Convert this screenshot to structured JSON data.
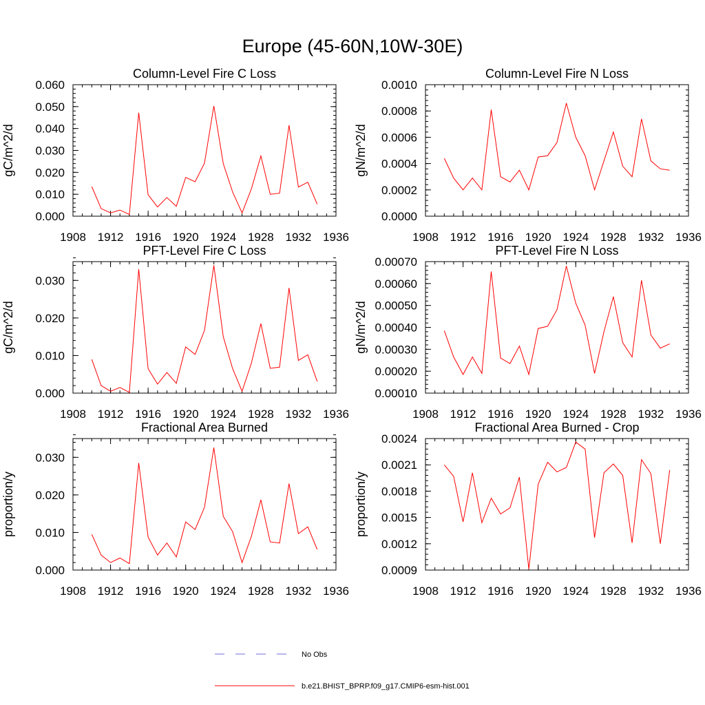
{
  "figure": {
    "title": "Europe (45-60N,10W-30E)"
  },
  "chart_data": [
    {
      "type": "line",
      "title": "Column-Level Fire C Loss",
      "ylabel": "gC/m^2/d",
      "xlim": [
        1908,
        1936
      ],
      "ylim": [
        0,
        0.06
      ],
      "xticks": [
        1908,
        1912,
        1916,
        1920,
        1924,
        1928,
        1932,
        1936
      ],
      "xtick_labels": [
        "1908",
        "1912",
        "1916",
        "1920",
        "1924",
        "1928",
        "1932",
        "1936"
      ],
      "yticks": [
        0,
        0.01,
        0.02,
        0.03,
        0.04,
        0.05,
        0.06
      ],
      "ytick_labels": [
        "0.000",
        "0.010",
        "0.020",
        "0.030",
        "0.040",
        "0.050",
        "0.060"
      ],
      "x": [
        1910,
        1911,
        1912,
        1913,
        1914,
        1915,
        1916,
        1917,
        1918,
        1919,
        1920,
        1921,
        1922,
        1923,
        1924,
        1925,
        1926,
        1927,
        1928,
        1929,
        1930,
        1931,
        1932,
        1933,
        1934
      ],
      "values": [
        0.0135,
        0.0035,
        0.0015,
        0.0028,
        0.0008,
        0.0472,
        0.0098,
        0.0042,
        0.0085,
        0.0045,
        0.0177,
        0.0157,
        0.0242,
        0.0503,
        0.024,
        0.011,
        0.0015,
        0.0125,
        0.0275,
        0.01,
        0.0105,
        0.0415,
        0.0133,
        0.0155,
        0.0055
      ],
      "color": "#ff0000"
    },
    {
      "type": "line",
      "title": "Column-Level Fire N Loss",
      "ylabel": "gN/m^2/d",
      "xlim": [
        1908,
        1936
      ],
      "ylim": [
        0,
        0.001
      ],
      "xticks": [
        1908,
        1912,
        1916,
        1920,
        1924,
        1928,
        1932,
        1936
      ],
      "xtick_labels": [
        "1908",
        "1912",
        "1916",
        "1920",
        "1924",
        "1928",
        "1932",
        "1936"
      ],
      "yticks": [
        0,
        0.0002,
        0.0004,
        0.0006,
        0.0008,
        0.001
      ],
      "ytick_labels": [
        "0.0000",
        "0.0002",
        "0.0004",
        "0.0006",
        "0.0008",
        "0.0010"
      ],
      "x": [
        1910,
        1911,
        1912,
        1913,
        1914,
        1915,
        1916,
        1917,
        1918,
        1919,
        1920,
        1921,
        1922,
        1923,
        1924,
        1925,
        1926,
        1927,
        1928,
        1929,
        1930,
        1931,
        1932,
        1933,
        1934
      ],
      "values": [
        0.00044,
        0.00029,
        0.0002,
        0.00029,
        0.0002,
        0.00081,
        0.0003,
        0.00026,
        0.00035,
        0.0002,
        0.00045,
        0.00046,
        0.00056,
        0.00086,
        0.0006,
        0.00046,
        0.0002,
        0.00042,
        0.00064,
        0.00038,
        0.0003,
        0.00074,
        0.00042,
        0.00036,
        0.00035
      ],
      "color": "#ff0000"
    },
    {
      "type": "line",
      "title": "PFT-Level Fire C Loss",
      "ylabel": "gC/m^2/d",
      "xlim": [
        1908,
        1936
      ],
      "ylim": [
        0,
        0.035
      ],
      "xticks": [
        1908,
        1912,
        1916,
        1920,
        1924,
        1928,
        1932,
        1936
      ],
      "xtick_labels": [
        "1908",
        "1912",
        "1916",
        "1920",
        "1924",
        "1928",
        "1932",
        "1936"
      ],
      "yticks": [
        0,
        0.01,
        0.02,
        0.03
      ],
      "ytick_labels": [
        "0.000",
        "0.010",
        "0.020",
        "0.030"
      ],
      "x": [
        1910,
        1911,
        1912,
        1913,
        1914,
        1915,
        1916,
        1917,
        1918,
        1919,
        1920,
        1921,
        1922,
        1923,
        1924,
        1925,
        1926,
        1927,
        1928,
        1929,
        1930,
        1931,
        1932,
        1933,
        1934
      ],
      "values": [
        0.009,
        0.002,
        0.0005,
        0.0015,
        0.0002,
        0.033,
        0.0065,
        0.0024,
        0.0055,
        0.0026,
        0.0123,
        0.0103,
        0.0167,
        0.034,
        0.015,
        0.0065,
        0.0005,
        0.008,
        0.0185,
        0.0066,
        0.0069,
        0.028,
        0.0087,
        0.0102,
        0.0031
      ],
      "color": "#ff0000"
    },
    {
      "type": "line",
      "title": "PFT-Level Fire N Loss",
      "ylabel": "gN/m^2/d",
      "xlim": [
        1908,
        1936
      ],
      "ylim": [
        0.0001,
        0.0007
      ],
      "xticks": [
        1908,
        1912,
        1916,
        1920,
        1924,
        1928,
        1932,
        1936
      ],
      "xtick_labels": [
        "1908",
        "1912",
        "1916",
        "1920",
        "1924",
        "1928",
        "1932",
        "1936"
      ],
      "yticks": [
        0.0001,
        0.0002,
        0.0003,
        0.0004,
        0.0005,
        0.0006,
        0.0007
      ],
      "ytick_labels": [
        "0.00010",
        "0.00020",
        "0.00030",
        "0.00040",
        "0.00050",
        "0.00060",
        "0.00070"
      ],
      "x": [
        1910,
        1911,
        1912,
        1913,
        1914,
        1915,
        1916,
        1917,
        1918,
        1919,
        1920,
        1921,
        1922,
        1923,
        1924,
        1925,
        1926,
        1927,
        1928,
        1929,
        1930,
        1931,
        1932,
        1933,
        1934
      ],
      "values": [
        0.000385,
        0.000265,
        0.000185,
        0.000265,
        0.00019,
        0.000655,
        0.00026,
        0.000235,
        0.000315,
        0.000185,
        0.000395,
        0.000405,
        0.00048,
        0.00068,
        0.00051,
        0.00041,
        0.00019,
        0.00038,
        0.00054,
        0.00033,
        0.000265,
        0.000615,
        0.000365,
        0.000305,
        0.000325
      ],
      "color": "#ff0000"
    },
    {
      "type": "line",
      "title": "Fractional Area Burned",
      "ylabel": "proportion/y",
      "xlim": [
        1908,
        1936
      ],
      "ylim": [
        0,
        0.035
      ],
      "xticks": [
        1908,
        1912,
        1916,
        1920,
        1924,
        1928,
        1932,
        1936
      ],
      "xtick_labels": [
        "1908",
        "1912",
        "1916",
        "1920",
        "1924",
        "1928",
        "1932",
        "1936"
      ],
      "yticks": [
        0,
        0.01,
        0.02,
        0.03
      ],
      "ytick_labels": [
        "0.000",
        "0.010",
        "0.020",
        "0.030"
      ],
      "x": [
        1910,
        1911,
        1912,
        1913,
        1914,
        1915,
        1916,
        1917,
        1918,
        1919,
        1920,
        1921,
        1922,
        1923,
        1924,
        1925,
        1926,
        1927,
        1928,
        1929,
        1930,
        1931,
        1932,
        1933,
        1934
      ],
      "values": [
        0.0095,
        0.004,
        0.002,
        0.0032,
        0.0017,
        0.0285,
        0.0088,
        0.004,
        0.0072,
        0.0035,
        0.0128,
        0.0108,
        0.0167,
        0.0326,
        0.0143,
        0.0102,
        0.002,
        0.009,
        0.0187,
        0.0075,
        0.0072,
        0.023,
        0.0097,
        0.0115,
        0.0055
      ],
      "color": "#ff0000"
    },
    {
      "type": "line",
      "title": "Fractional Area Burned - Crop",
      "ylabel": "proportion/y",
      "xlim": [
        1908,
        1936
      ],
      "ylim": [
        0.0009,
        0.0024
      ],
      "xticks": [
        1908,
        1912,
        1916,
        1920,
        1924,
        1928,
        1932,
        1936
      ],
      "xtick_labels": [
        "1908",
        "1912",
        "1916",
        "1920",
        "1924",
        "1928",
        "1932",
        "1936"
      ],
      "yticks": [
        0.0009,
        0.0012,
        0.0015,
        0.0018,
        0.0021,
        0.0024
      ],
      "ytick_labels": [
        "0.0009",
        "0.0012",
        "0.0015",
        "0.0018",
        "0.0021",
        "0.0024"
      ],
      "x": [
        1910,
        1911,
        1912,
        1913,
        1914,
        1915,
        1916,
        1917,
        1918,
        1919,
        1920,
        1921,
        1922,
        1923,
        1924,
        1925,
        1926,
        1927,
        1928,
        1929,
        1930,
        1931,
        1932,
        1933,
        1934
      ],
      "values": [
        0.0021,
        0.00197,
        0.00145,
        0.00201,
        0.00144,
        0.00172,
        0.00154,
        0.00161,
        0.00196,
        0.00091,
        0.00188,
        0.00213,
        0.00202,
        0.00207,
        0.00236,
        0.00228,
        0.00127,
        0.00201,
        0.00211,
        0.00198,
        0.00121,
        0.00216,
        0.002,
        0.0012,
        0.00204
      ],
      "color": "#ff0000"
    }
  ],
  "legend": [
    {
      "label": "No Obs",
      "color": "#6d6dd8",
      "dash": "dashed"
    },
    {
      "label": "b.e21.BHIST_BPRP.f09_g17.CMIP6-esm-hist.001",
      "color": "#ff0000",
      "dash": "solid"
    }
  ]
}
